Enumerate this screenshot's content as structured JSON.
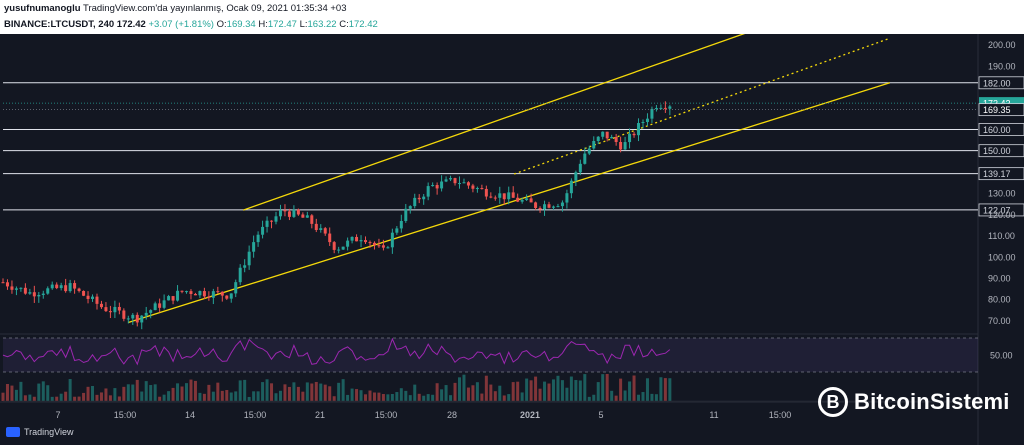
{
  "header": {
    "author": "yusufnumanoglu",
    "published": "TradingView.com'da yayınlanmış, Ocak 09, 2021 01:35:34 +03",
    "symbol": "BINANCE:LTCUSDT, 240",
    "last": "172.42",
    "change": "+3.07 (+1.81%)",
    "o_label": "O:",
    "o_value": "169.34",
    "h_label": "H:",
    "h_value": "172.47",
    "l_label": "L:",
    "l_value": "163.22",
    "c_label": "C:",
    "c_value": "172.42"
  },
  "footer": {
    "brand": "TradingView"
  },
  "watermark": {
    "text": "BitcoinSistemi",
    "glyph": "B"
  },
  "colors": {
    "bg": "#131722",
    "up": "#26a69a",
    "down": "#ef5350",
    "channel": "#f5d90a",
    "rsi": "#9c27b0",
    "last_price": "#26a69a"
  },
  "chart_data": {
    "type": "candlestick",
    "symbol": "BINANCE:LTCUSDT",
    "interval": "240",
    "x_ticks": [
      "7",
      "15:00",
      "14",
      "15:00",
      "21",
      "15:00",
      "28",
      "2021",
      "5",
      "11",
      "15:00"
    ],
    "y_ticks": [
      70,
      80,
      90,
      100,
      110,
      120,
      130,
      190,
      200
    ],
    "ylim": [
      65,
      205
    ],
    "levels": [
      {
        "label": "182.00",
        "value": 182.0
      },
      {
        "label": "160.00",
        "value": 160.0
      },
      {
        "label": "150.00",
        "value": 150.0
      },
      {
        "label": "139.17",
        "value": 139.17
      },
      {
        "label": "122.07",
        "value": 122.07
      }
    ],
    "price_labels": [
      {
        "label": "172.42",
        "value": 172.42,
        "kind": "last"
      },
      {
        "label": "169.35",
        "value": 169.35,
        "kind": "ref"
      }
    ],
    "channel_lines": [
      {
        "name": "upper",
        "start_t": 0.355,
        "start_y": 122,
        "end_t": 1.12,
        "end_y": 208
      },
      {
        "name": "lower",
        "start_t": 0.185,
        "start_y": 69,
        "end_t": 1.31,
        "end_y": 182
      },
      {
        "name": "mid",
        "start_t": 0.755,
        "start_y": 139,
        "end_t": 1.31,
        "end_y": 203,
        "dotted": true
      }
    ],
    "rsi": {
      "ticks": [
        50
      ],
      "upper": 70,
      "lower": 30
    },
    "candles": []
  }
}
